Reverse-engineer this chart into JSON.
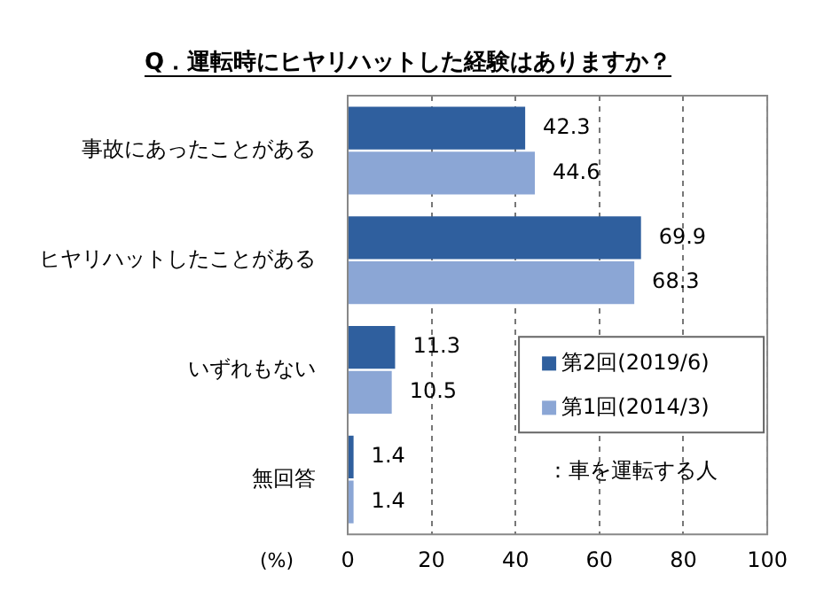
{
  "chart_data": {
    "type": "bar",
    "orientation": "horizontal",
    "title": "Q．運転時にヒヤリハットした経験はありますか？",
    "xlabel": "(%)",
    "categories": [
      "事故にあったことがある",
      "ヒヤリハットしたことがある",
      "いずれもない",
      "無回答"
    ],
    "series": [
      {
        "name": "第2回(2019/6)",
        "color": "#2f5f9e",
        "values": [
          42.3,
          69.9,
          11.3,
          1.4
        ]
      },
      {
        "name": "第1回(2014/3)",
        "color": "#8ba6d5",
        "values": [
          44.6,
          68.3,
          10.5,
          1.4
        ]
      }
    ],
    "xlim": [
      0,
      100
    ],
    "xticks": [
      0,
      20,
      40,
      60,
      80,
      100
    ],
    "grid": "x",
    "legend": "bottom right",
    "data_labels": true,
    "annotations": [
      "：車を運転する人"
    ]
  }
}
